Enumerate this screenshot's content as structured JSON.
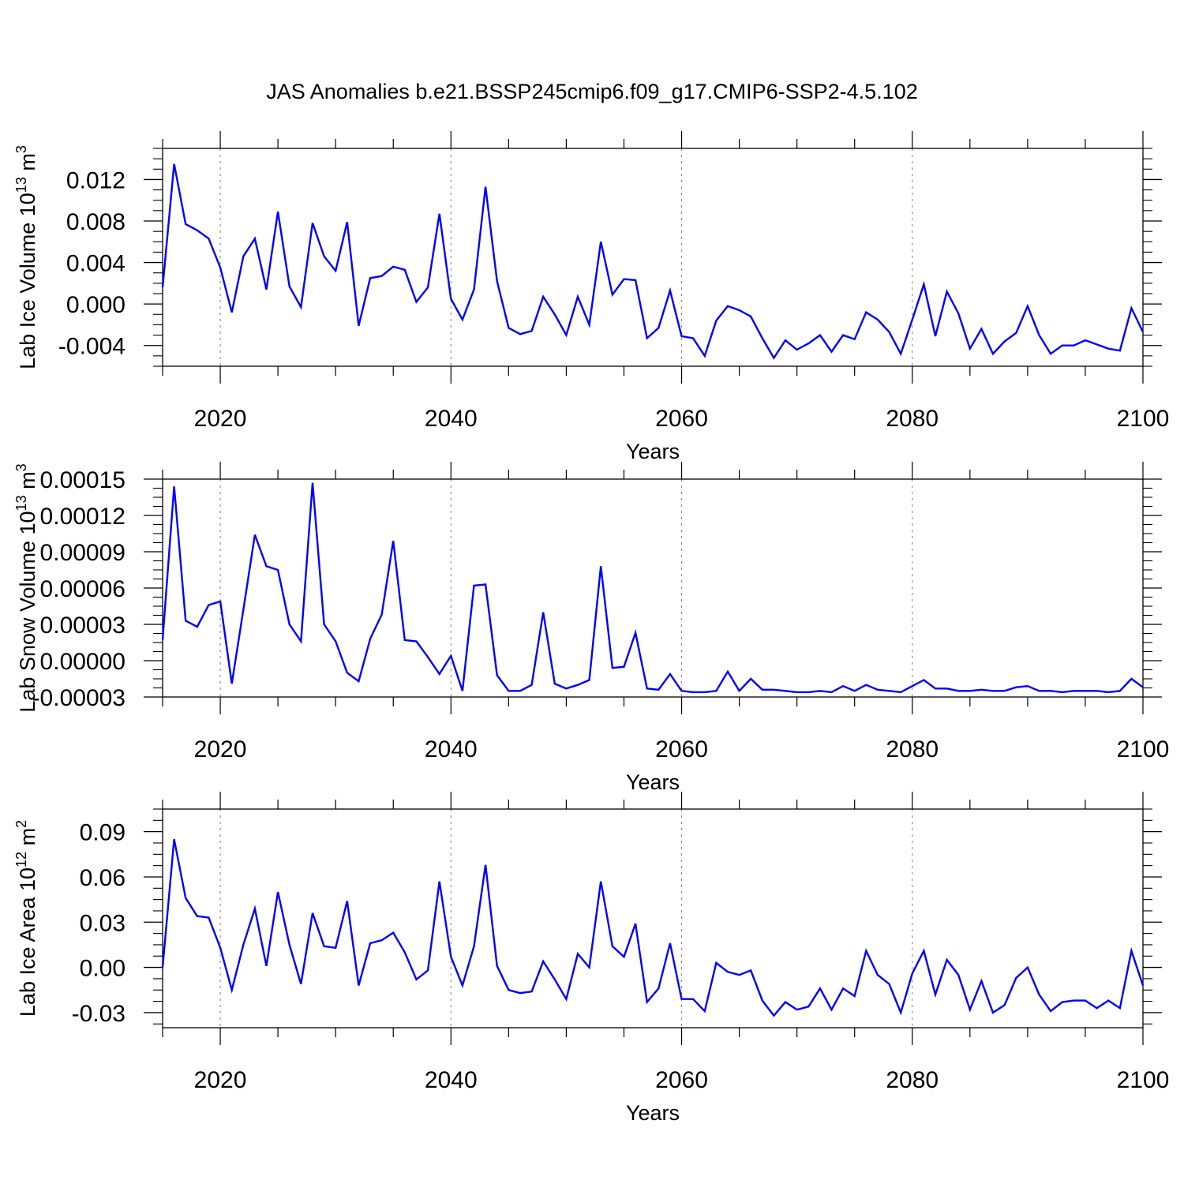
{
  "title": "JAS Anomalies b.e21.BSSP245cmip6.f09_g17.CMIP6-SSP2-4.5.102",
  "line_color": "#0000ff",
  "chart_data": [
    {
      "type": "line",
      "xlabel": "Years",
      "ylabel": "Lab Ice Volume 10",
      "ylabel_exp": "13",
      "ylabel_unit": " m",
      "ylabel_unit_exp": "3",
      "xlim": [
        2015,
        2100
      ],
      "ylim": [
        -0.006,
        0.015
      ],
      "x_ticks": [
        2020,
        2040,
        2060,
        2080,
        2100
      ],
      "x_tick_labels": [
        "2020",
        "2040",
        "2060",
        "2080",
        "2100"
      ],
      "y_ticks": [
        -0.004,
        0,
        0.004,
        0.008,
        0.012
      ],
      "y_tick_labels": [
        "-0.004",
        "0.000",
        "0.004",
        "0.008",
        "0.012"
      ],
      "grid": "dashed vertical lines at major x ticks",
      "x": [
        2015,
        2016,
        2017,
        2018,
        2019,
        2020,
        2021,
        2022,
        2023,
        2024,
        2025,
        2026,
        2027,
        2028,
        2029,
        2030,
        2031,
        2032,
        2033,
        2034,
        2035,
        2036,
        2037,
        2038,
        2039,
        2040,
        2041,
        2042,
        2043,
        2044,
        2045,
        2046,
        2047,
        2048,
        2049,
        2050,
        2051,
        2052,
        2053,
        2054,
        2055,
        2056,
        2057,
        2058,
        2059,
        2060,
        2061,
        2062,
        2063,
        2064,
        2065,
        2066,
        2067,
        2068,
        2069,
        2070,
        2071,
        2072,
        2073,
        2074,
        2075,
        2076,
        2077,
        2078,
        2079,
        2080,
        2081,
        2082,
        2083,
        2084,
        2085,
        2086,
        2087,
        2088,
        2089,
        2090,
        2091,
        2092,
        2093,
        2094,
        2095,
        2096,
        2097,
        2098,
        2099,
        2100
      ],
      "series": [
        {
          "values": [
            0.0016,
            0.0135,
            0.0077,
            0.0071,
            0.0063,
            0.0035,
            -0.0008,
            0.0046,
            0.0063,
            0.0014,
            0.0089,
            0.0017,
            -0.0003,
            0.0078,
            0.0046,
            0.0032,
            0.0079,
            -0.0021,
            0.0025,
            0.0027,
            0.0036,
            0.0033,
            0.0002,
            0.0016,
            0.0087,
            0.0005,
            -0.0015,
            0.0014,
            0.0113,
            0.0022,
            -0.0023,
            -0.0029,
            -0.0026,
            0.0007,
            -0.001,
            -0.003,
            0.0007,
            -0.002,
            0.006,
            0.0009,
            0.0024,
            0.0023,
            -0.0033,
            -0.0023,
            0.0013,
            -0.0031,
            -0.0033,
            -0.005,
            -0.0016,
            -0.0002,
            -0.0006,
            -0.0012,
            -0.0033,
            -0.0052,
            -0.0035,
            -0.0044,
            -0.0038,
            -0.003,
            -0.0046,
            -0.003,
            -0.0034,
            -0.0008,
            -0.0015,
            -0.0027,
            -0.0048,
            -0.0015,
            0.0019,
            -0.0031,
            0.0012,
            -0.0009,
            -0.0043,
            -0.0024,
            -0.0048,
            -0.0036,
            -0.0028,
            -0.0002,
            -0.003,
            -0.0048,
            -0.004,
            -0.004,
            -0.0035,
            -0.0039,
            -0.0043,
            -0.0045,
            -0.0004,
            -0.0027
          ]
        }
      ]
    },
    {
      "type": "line",
      "xlabel": "Years",
      "ylabel": "Lab Snow Volume 10",
      "ylabel_exp": "13",
      "ylabel_unit": " m",
      "ylabel_unit_exp": "3",
      "xlim": [
        2015,
        2100
      ],
      "ylim": [
        -3e-05,
        0.00015
      ],
      "x_ticks": [
        2020,
        2040,
        2060,
        2080,
        2100
      ],
      "x_tick_labels": [
        "2020",
        "2040",
        "2060",
        "2080",
        "2100"
      ],
      "y_ticks": [
        -3e-05,
        0,
        3e-05,
        6e-05,
        9e-05,
        0.00012,
        0.00015
      ],
      "y_tick_labels": [
        "-0.00003",
        "0.00000",
        "0.00003",
        "0.00006",
        "0.00009",
        "0.00012",
        "0.00015"
      ],
      "grid": "dashed vertical lines at major x ticks",
      "x": [
        2015,
        2016,
        2017,
        2018,
        2019,
        2020,
        2021,
        2022,
        2023,
        2024,
        2025,
        2026,
        2027,
        2028,
        2029,
        2030,
        2031,
        2032,
        2033,
        2034,
        2035,
        2036,
        2037,
        2038,
        2039,
        2040,
        2041,
        2042,
        2043,
        2044,
        2045,
        2046,
        2047,
        2048,
        2049,
        2050,
        2051,
        2052,
        2053,
        2054,
        2055,
        2056,
        2057,
        2058,
        2059,
        2060,
        2061,
        2062,
        2063,
        2064,
        2065,
        2066,
        2067,
        2068,
        2069,
        2070,
        2071,
        2072,
        2073,
        2074,
        2075,
        2076,
        2077,
        2078,
        2079,
        2080,
        2081,
        2082,
        2083,
        2084,
        2085,
        2086,
        2087,
        2088,
        2089,
        2090,
        2091,
        2092,
        2093,
        2094,
        2095,
        2096,
        2097,
        2098,
        2099,
        2100
      ],
      "series": [
        {
          "values": [
            1.7e-05,
            0.000144,
            3.3e-05,
            2.8e-05,
            4.6e-05,
            4.9e-05,
            -1.9e-05,
            4.2e-05,
            0.000104,
            7.8e-05,
            7.5e-05,
            3e-05,
            1.6e-05,
            0.000147,
            3e-05,
            1.6e-05,
            -1e-05,
            -1.7e-05,
            1.8e-05,
            3.8e-05,
            9.9e-05,
            1.7e-05,
            1.6e-05,
            3e-06,
            -1.1e-05,
            4e-06,
            -2.5e-05,
            6.2e-05,
            6.3e-05,
            -1.2e-05,
            -2.5e-05,
            -2.5e-05,
            -2e-05,
            4e-05,
            -1.9e-05,
            -2.3e-05,
            -2e-05,
            -1.6e-05,
            7.8e-05,
            -6e-06,
            -5e-06,
            2.3e-05,
            -2.3e-05,
            -2.4e-05,
            -1.1e-05,
            -2.5e-05,
            -2.6e-05,
            -2.6e-05,
            -2.5e-05,
            -9e-06,
            -2.5e-05,
            -1.5e-05,
            -2.4e-05,
            -2.4e-05,
            -2.5e-05,
            -2.6e-05,
            -2.6e-05,
            -2.5e-05,
            -2.6e-05,
            -2.1e-05,
            -2.5e-05,
            -2e-05,
            -2.4e-05,
            -2.5e-05,
            -2.6e-05,
            -2.1e-05,
            -1.6e-05,
            -2.3e-05,
            -2.3e-05,
            -2.5e-05,
            -2.5e-05,
            -2.4e-05,
            -2.5e-05,
            -2.5e-05,
            -2.2e-05,
            -2.1e-05,
            -2.5e-05,
            -2.5e-05,
            -2.6e-05,
            -2.5e-05,
            -2.5e-05,
            -2.5e-05,
            -2.6e-05,
            -2.5e-05,
            -1.5e-05,
            -2.2e-05
          ]
        }
      ]
    },
    {
      "type": "line",
      "xlabel": "Years",
      "ylabel": "Lab Ice Area 10",
      "ylabel_exp": "12",
      "ylabel_unit": " m",
      "ylabel_unit_exp": "2",
      "xlim": [
        2015,
        2100
      ],
      "ylim": [
        -0.04,
        0.105
      ],
      "x_ticks": [
        2020,
        2040,
        2060,
        2080,
        2100
      ],
      "x_tick_labels": [
        "2020",
        "2040",
        "2060",
        "2080",
        "2100"
      ],
      "y_ticks": [
        -0.03,
        0,
        0.03,
        0.06,
        0.09
      ],
      "y_tick_labels": [
        "-0.03",
        "0.00",
        "0.03",
        "0.06",
        "0.09"
      ],
      "grid": "dashed vertical lines at major x ticks",
      "x": [
        2015,
        2016,
        2017,
        2018,
        2019,
        2020,
        2021,
        2022,
        2023,
        2024,
        2025,
        2026,
        2027,
        2028,
        2029,
        2030,
        2031,
        2032,
        2033,
        2034,
        2035,
        2036,
        2037,
        2038,
        2039,
        2040,
        2041,
        2042,
        2043,
        2044,
        2045,
        2046,
        2047,
        2048,
        2049,
        2050,
        2051,
        2052,
        2053,
        2054,
        2055,
        2056,
        2057,
        2058,
        2059,
        2060,
        2061,
        2062,
        2063,
        2064,
        2065,
        2066,
        2067,
        2068,
        2069,
        2070,
        2071,
        2072,
        2073,
        2074,
        2075,
        2076,
        2077,
        2078,
        2079,
        2080,
        2081,
        2082,
        2083,
        2084,
        2085,
        2086,
        2087,
        2088,
        2089,
        2090,
        2091,
        2092,
        2093,
        2094,
        2095,
        2096,
        2097,
        2098,
        2099,
        2100
      ],
      "series": [
        {
          "values": [
            0.0,
            0.085,
            0.046,
            0.034,
            0.033,
            0.013,
            -0.015,
            0.015,
            0.039,
            0.001,
            0.05,
            0.015,
            -0.011,
            0.036,
            0.014,
            0.013,
            0.044,
            -0.012,
            0.016,
            0.018,
            0.023,
            0.01,
            -0.008,
            -0.002,
            0.057,
            0.007,
            -0.012,
            0.014,
            0.068,
            0.001,
            -0.015,
            -0.017,
            -0.016,
            0.004,
            -0.008,
            -0.021,
            0.009,
            0.0,
            0.057,
            0.014,
            0.007,
            0.029,
            -0.023,
            -0.014,
            0.016,
            -0.021,
            -0.021,
            -0.029,
            0.003,
            -0.003,
            -0.005,
            -0.002,
            -0.022,
            -0.032,
            -0.023,
            -0.028,
            -0.026,
            -0.014,
            -0.028,
            -0.014,
            -0.019,
            0.011,
            -0.005,
            -0.011,
            -0.03,
            -0.004,
            0.011,
            -0.018,
            0.005,
            -0.005,
            -0.028,
            -0.009,
            -0.03,
            -0.025,
            -0.007,
            0.0,
            -0.018,
            -0.029,
            -0.023,
            -0.022,
            -0.022,
            -0.027,
            -0.022,
            -0.027,
            0.011,
            -0.012
          ]
        }
      ]
    }
  ]
}
